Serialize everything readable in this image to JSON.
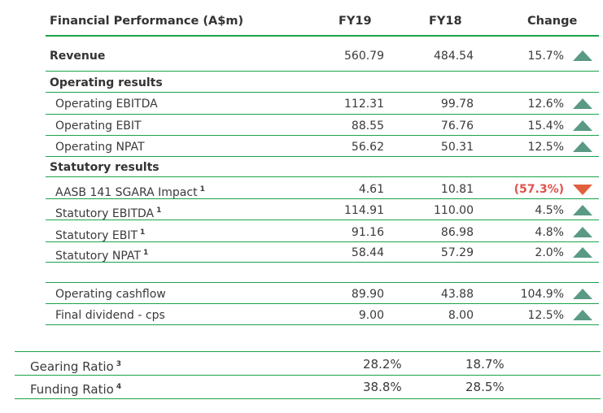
{
  "header": {
    "title": "Financial Performance (A$m)",
    "fy19": "FY19",
    "fy18": "FY18",
    "change": "Change"
  },
  "revenue": {
    "label": "Revenue",
    "fy19": "560.79",
    "fy18": "484.54",
    "change": "15.7%",
    "trend": "up"
  },
  "operating": {
    "heading": "Operating results",
    "rows": [
      {
        "label": "Operating EBITDA",
        "fy19": "112.31",
        "fy18": "99.78",
        "change": "12.6%",
        "trend": "up"
      },
      {
        "label": "Operating EBIT",
        "fy19": "88.55",
        "fy18": "76.76",
        "change": "15.4%",
        "trend": "up"
      },
      {
        "label": "Operating NPAT",
        "fy19": "56.62",
        "fy18": "50.31",
        "change": "12.5%",
        "trend": "up"
      }
    ]
  },
  "statutory": {
    "heading": "Statutory results",
    "rows": [
      {
        "label": "AASB 141 SGARA Impact",
        "note": "1",
        "fy19": "4.61",
        "fy18": "10.81",
        "change": "(57.3%)",
        "trend": "down"
      },
      {
        "label": "Statutory EBITDA",
        "note": "1",
        "fy19": "114.91",
        "fy18": "110.00",
        "change": "4.5%",
        "trend": "up"
      },
      {
        "label": "Statutory EBIT",
        "note": "1",
        "fy19": "91.16",
        "fy18": "86.98",
        "change": "4.8%",
        "trend": "up"
      },
      {
        "label": "Statutory NPAT",
        "note": "1",
        "fy19": "58.44",
        "fy18": "57.29",
        "change": "2.0%",
        "trend": "up"
      }
    ]
  },
  "cash": {
    "rows": [
      {
        "label": "Operating cashflow",
        "fy19": "89.90",
        "fy18": "43.88",
        "change": "104.9%",
        "trend": "up"
      },
      {
        "label": "Final dividend - cps",
        "fy19": "9.00",
        "fy18": "8.00",
        "change": "12.5%",
        "trend": "up"
      }
    ]
  },
  "ratios": {
    "rows": [
      {
        "label": "Gearing Ratio",
        "note": "3",
        "fy19": "28.2%",
        "fy18": "18.7%"
      },
      {
        "label": "Funding Ratio",
        "note": "4",
        "fy19": "38.8%",
        "fy18": "28.5%"
      }
    ]
  },
  "colors": {
    "rule": "#1aa34a",
    "up": "#5a9a84",
    "down": "#e0603e",
    "negative_text": "#e0514a"
  }
}
